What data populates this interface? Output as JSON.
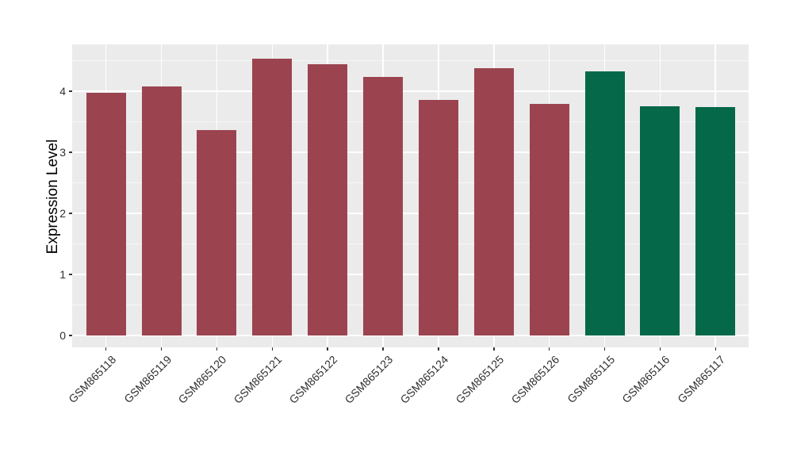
{
  "chart_data": {
    "type": "bar",
    "title": "",
    "xlabel": "",
    "ylabel": "Expression Level",
    "categories": [
      "GSM865118",
      "GSM865119",
      "GSM865120",
      "GSM865121",
      "GSM865122",
      "GSM865123",
      "GSM865124",
      "GSM865125",
      "GSM865126",
      "GSM865115",
      "GSM865116",
      "GSM865117"
    ],
    "values": [
      3.98,
      4.08,
      3.36,
      4.53,
      4.45,
      4.24,
      3.86,
      4.38,
      3.8,
      4.33,
      3.76,
      3.74
    ],
    "bar_colors": [
      "#9B4450",
      "#9B4450",
      "#9B4450",
      "#9B4450",
      "#9B4450",
      "#9B4450",
      "#9B4450",
      "#9B4450",
      "#9B4450",
      "#046849",
      "#046849",
      "#046849"
    ],
    "palette": {
      "maroon_group": "#9B4450",
      "green_group": "#046849"
    },
    "yticks": [
      0,
      1,
      2,
      3,
      4
    ],
    "ytick_labels": [
      "0",
      "1",
      "2",
      "3",
      "4"
    ],
    "ylim": [
      0,
      4.77
    ],
    "grid": {
      "horizontal_major": true,
      "horizontal_minor": true,
      "vertical_at_categories": true
    },
    "legend": null,
    "colors": {
      "figure_bg": "#FFFFFF",
      "panel_bg": "#EBEBEB",
      "grid_major": "#FFFFFF",
      "grid_minor": "rgba(255,255,255,0.62)",
      "tick_mark": "#333333",
      "tick_label": "#303030",
      "axis_title": "#000000"
    }
  }
}
